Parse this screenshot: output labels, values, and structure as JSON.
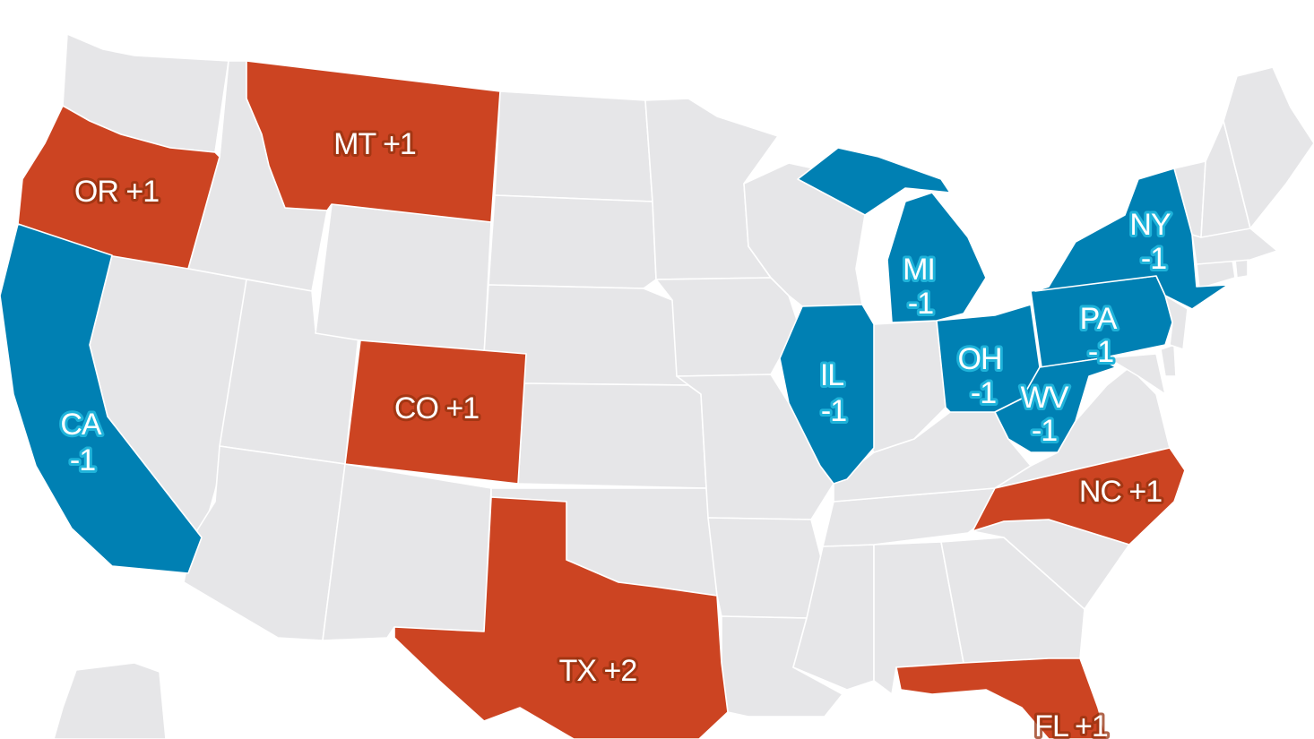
{
  "colors": {
    "gain": "#cc4422",
    "loss": "#0080b3",
    "neutral": "#e6e6e8",
    "border": "#ffffff"
  },
  "states": {
    "OR": {
      "abbr": "OR",
      "change": "+1",
      "label": "OR +1",
      "status": "gain"
    },
    "MT": {
      "abbr": "MT",
      "change": "+1",
      "label": "MT +1",
      "status": "gain"
    },
    "CO": {
      "abbr": "CO",
      "change": "+1",
      "label": "CO +1",
      "status": "gain"
    },
    "TX": {
      "abbr": "TX",
      "change": "+2",
      "label": "TX +2",
      "status": "gain"
    },
    "NC": {
      "abbr": "NC",
      "change": "+1",
      "label": "NC +1",
      "status": "gain"
    },
    "FL": {
      "abbr": "FL",
      "change": "+1",
      "label": "FL +1",
      "status": "gain"
    },
    "CA": {
      "abbr": "CA",
      "change": "-1",
      "status": "loss"
    },
    "IL": {
      "abbr": "IL",
      "change": "-1",
      "status": "loss"
    },
    "MI": {
      "abbr": "MI",
      "change": "-1",
      "status": "loss"
    },
    "OH": {
      "abbr": "OH",
      "change": "-1",
      "status": "loss"
    },
    "PA": {
      "abbr": "PA",
      "change": "-1",
      "status": "loss"
    },
    "WV": {
      "abbr": "WV",
      "change": "-1",
      "status": "loss"
    },
    "NY": {
      "abbr": "NY",
      "change": "-1",
      "status": "loss"
    }
  }
}
